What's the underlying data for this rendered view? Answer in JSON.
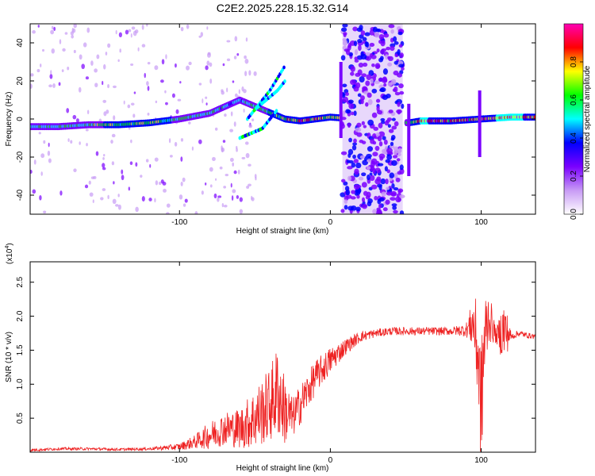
{
  "title": "C2E2.2025.228.15.32.G14",
  "chart_data": [
    {
      "type": "heatmap",
      "xlabel": "Height of straight line (km)",
      "ylabel": "Frequency (Hz)",
      "xlim": [
        -199,
        136
      ],
      "ylim": [
        -50,
        50
      ],
      "xticks": [
        {
          "value": -100,
          "label": "-100"
        },
        {
          "value": 0,
          "label": "0"
        },
        {
          "value": 100,
          "label": "100"
        }
      ],
      "yticks": [
        {
          "value": -40,
          "label": "-40"
        },
        {
          "value": -20,
          "label": "-20"
        },
        {
          "value": 0,
          "label": "0"
        },
        {
          "value": 20,
          "label": "20"
        },
        {
          "value": 40,
          "label": "40"
        }
      ],
      "colorbar": {
        "label": "Normalized spectral amplitude",
        "range": [
          0,
          1
        ],
        "ticks": [
          "0.0",
          "0.2",
          "0.4",
          "0.6",
          "0.8"
        ],
        "tick_values": [
          0.0,
          0.2,
          0.4,
          0.6,
          0.8
        ],
        "colors": [
          "#ffffff",
          "#c89bf5",
          "#7a00ff",
          "#0000ff",
          "#00ffff",
          "#00ff00",
          "#ffff00",
          "#ff0000",
          "#ff00b4"
        ]
      },
      "dominant_trace": [
        {
          "x": -199,
          "y": -4,
          "amp": 0.5
        },
        {
          "x": -180,
          "y": -4,
          "amp": 0.55
        },
        {
          "x": -160,
          "y": -3,
          "amp": 0.6
        },
        {
          "x": -140,
          "y": -3,
          "amp": 0.65
        },
        {
          "x": -120,
          "y": -2,
          "amp": 0.7
        },
        {
          "x": -100,
          "y": 0,
          "amp": 0.6
        },
        {
          "x": -80,
          "y": 3,
          "amp": 0.55
        },
        {
          "x": -60,
          "y": 10,
          "amp": 0.5
        },
        {
          "x": -30,
          "y": 0,
          "amp": 0.7
        },
        {
          "x": -20,
          "y": -1,
          "amp": 0.85
        },
        {
          "x": -10,
          "y": 0,
          "amp": 0.8
        },
        {
          "x": 0,
          "y": 1,
          "amp": 0.7
        },
        {
          "x": 52,
          "y": -2,
          "amp": 0.6
        },
        {
          "x": 60,
          "y": -1,
          "amp": 0.9
        },
        {
          "x": 80,
          "y": -1,
          "amp": 0.8
        },
        {
          "x": 100,
          "y": 0,
          "amp": 0.85
        },
        {
          "x": 120,
          "y": 1,
          "amp": 0.9
        },
        {
          "x": 136,
          "y": 1,
          "amp": 0.85
        }
      ],
      "harmonic_traces": [
        [
          {
            "x": -60,
            "y": -10
          },
          {
            "x": -45,
            "y": -5
          },
          {
            "x": -35,
            "y": 5
          }
        ],
        [
          {
            "x": -55,
            "y": 0
          },
          {
            "x": -40,
            "y": 15
          },
          {
            "x": -30,
            "y": 28
          }
        ],
        [
          {
            "x": -50,
            "y": 5
          },
          {
            "x": -35,
            "y": 15
          },
          {
            "x": -30,
            "y": 20
          }
        ]
      ],
      "noise_band": {
        "x_start": 8,
        "x_end": 48,
        "amp": 0.3
      }
    },
    {
      "type": "line",
      "xlabel": "Height of straight line (km)",
      "ylabel": "SNR (10 * v/v)",
      "y_scale_label": "(x10",
      "y_scale_exponent": "4",
      "xlim": [
        -199,
        136
      ],
      "ylim": [
        0,
        2.8
      ],
      "xticks": [
        {
          "value": -100,
          "label": "-100"
        },
        {
          "value": 0,
          "label": "0"
        },
        {
          "value": 100,
          "label": "100"
        }
      ],
      "yticks": [
        {
          "value": 0.5,
          "label": "0.5"
        },
        {
          "value": 1.0,
          "label": "1.0"
        },
        {
          "value": 1.5,
          "label": "1.5"
        },
        {
          "value": 2.0,
          "label": "2.0"
        },
        {
          "value": 2.5,
          "label": "2.5"
        }
      ],
      "series": [
        {
          "color": "#ee2222",
          "x": [
            -199,
            -180,
            -160,
            -140,
            -120,
            -100,
            -90,
            -80,
            -70,
            -60,
            -50,
            -40,
            -35,
            -30,
            -25,
            -20,
            -10,
            0,
            10,
            20,
            30,
            40,
            50,
            60,
            70,
            80,
            90,
            95,
            98,
            100,
            102,
            105,
            110,
            115,
            120,
            125,
            130,
            136
          ],
          "y": [
            0.03,
            0.05,
            0.05,
            0.04,
            0.05,
            0.08,
            0.15,
            0.25,
            0.35,
            0.35,
            0.5,
            0.7,
            0.9,
            0.6,
            0.5,
            0.7,
            1.1,
            1.35,
            1.55,
            1.7,
            1.75,
            1.78,
            1.78,
            1.78,
            1.78,
            1.78,
            1.8,
            1.9,
            1.4,
            0.6,
            1.6,
            2.0,
            1.7,
            1.8,
            1.7,
            1.75,
            1.72,
            1.7
          ],
          "noise": [
            0.02,
            0.02,
            0.02,
            0.02,
            0.02,
            0.05,
            0.1,
            0.2,
            0.25,
            0.3,
            0.45,
            0.55,
            0.7,
            0.5,
            0.3,
            0.3,
            0.25,
            0.2,
            0.12,
            0.08,
            0.06,
            0.06,
            0.06,
            0.06,
            0.06,
            0.06,
            0.1,
            0.4,
            0.8,
            1.0,
            0.8,
            0.4,
            0.1,
            0.5,
            0.05,
            0.05,
            0.04,
            0.04
          ]
        }
      ]
    }
  ]
}
